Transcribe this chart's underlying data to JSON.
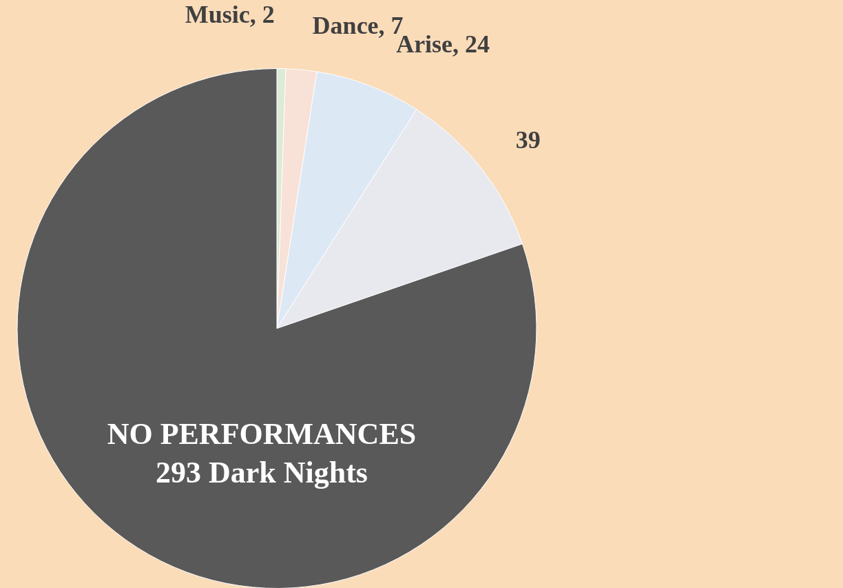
{
  "chart_data": {
    "type": "pie",
    "categories": [
      "Music",
      "Dance",
      "Arise",
      null,
      "NO PERFORMANCES"
    ],
    "values": [
      2,
      7,
      24,
      39,
      293
    ],
    "value_labels": [
      "2",
      "7",
      "24",
      "39",
      "293 Dark Nights"
    ],
    "colors": [
      "#dcead6",
      "#f8e1d6",
      "#dde8f5",
      "#e8e9ef",
      "#595959"
    ],
    "legend": false
  }
}
